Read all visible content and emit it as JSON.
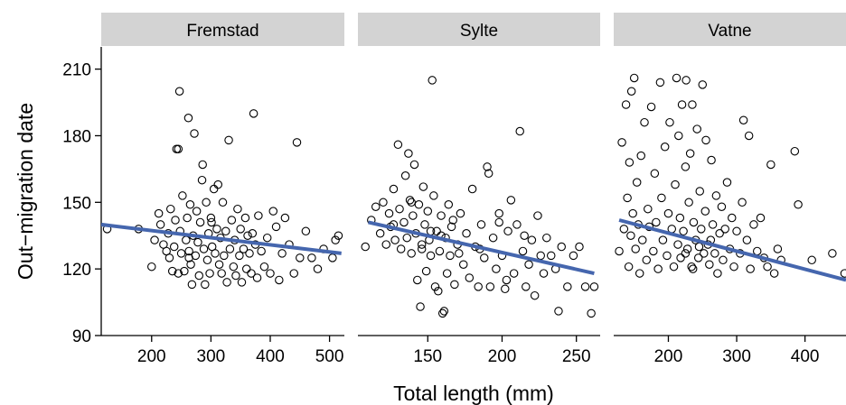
{
  "chart_data": {
    "type": "scatter",
    "facet_layout": "3 panels in one row, shared y axis",
    "xlabel": "Total length (mm)",
    "ylabel": "Out−migration date",
    "ylim": [
      90,
      220
    ],
    "yticks": [
      90,
      120,
      150,
      180,
      210
    ],
    "grid": false,
    "point_style": "open circle",
    "colors": {
      "points": "#000000",
      "trend_line": "#4566AE",
      "strip_background": "#D3D3D3"
    },
    "panels": [
      {
        "name": "Fremstad",
        "xlim": [
          115,
          525
        ],
        "xticks": [
          200,
          300,
          400,
          500
        ],
        "trend": {
          "x": [
            115,
            520
          ],
          "y": [
            140,
            127
          ]
        },
        "points": [
          [
            125,
            138
          ],
          [
            178,
            138
          ],
          [
            200,
            121
          ],
          [
            205,
            133
          ],
          [
            212,
            145
          ],
          [
            215,
            140
          ],
          [
            220,
            131
          ],
          [
            225,
            128
          ],
          [
            228,
            136
          ],
          [
            230,
            125
          ],
          [
            232,
            147
          ],
          [
            235,
            119
          ],
          [
            238,
            130
          ],
          [
            240,
            142
          ],
          [
            242,
            174
          ],
          [
            245,
            118
          ],
          [
            245,
            174
          ],
          [
            247,
            200
          ],
          [
            248,
            137
          ],
          [
            250,
            127
          ],
          [
            252,
            153
          ],
          [
            255,
            119
          ],
          [
            258,
            133
          ],
          [
            260,
            143
          ],
          [
            262,
            188
          ],
          [
            263,
            128
          ],
          [
            265,
            149
          ],
          [
            266,
            122
          ],
          [
            268,
            113
          ],
          [
            270,
            135
          ],
          [
            272,
            181
          ],
          [
            274,
            126
          ],
          [
            276,
            146
          ],
          [
            278,
            132
          ],
          [
            280,
            117
          ],
          [
            282,
            141
          ],
          [
            285,
            160
          ],
          [
            286,
            167
          ],
          [
            288,
            129
          ],
          [
            290,
            113
          ],
          [
            292,
            150
          ],
          [
            294,
            124
          ],
          [
            296,
            136
          ],
          [
            298,
            118
          ],
          [
            300,
            143
          ],
          [
            302,
            130
          ],
          [
            305,
            156
          ],
          [
            307,
            127
          ],
          [
            310,
            138
          ],
          [
            312,
            158
          ],
          [
            314,
            122
          ],
          [
            316,
            134
          ],
          [
            318,
            118
          ],
          [
            320,
            150
          ],
          [
            322,
            126
          ],
          [
            325,
            137
          ],
          [
            327,
            114
          ],
          [
            330,
            178
          ],
          [
            332,
            129
          ],
          [
            335,
            142
          ],
          [
            338,
            121
          ],
          [
            340,
            133
          ],
          [
            342,
            117
          ],
          [
            345,
            147
          ],
          [
            348,
            126
          ],
          [
            350,
            138
          ],
          [
            352,
            114
          ],
          [
            355,
            129
          ],
          [
            358,
            143
          ],
          [
            360,
            120
          ],
          [
            362,
            135
          ],
          [
            365,
            127
          ],
          [
            368,
            118
          ],
          [
            370,
            136
          ],
          [
            372,
            190
          ],
          [
            375,
            131
          ],
          [
            378,
            116
          ],
          [
            380,
            144
          ],
          [
            385,
            128
          ],
          [
            390,
            121
          ],
          [
            395,
            134
          ],
          [
            400,
            118
          ],
          [
            405,
            146
          ],
          [
            410,
            139
          ],
          [
            415,
            115
          ],
          [
            420,
            127
          ],
          [
            425,
            143
          ],
          [
            432,
            131
          ],
          [
            440,
            118
          ],
          [
            445,
            177
          ],
          [
            450,
            125
          ],
          [
            460,
            137
          ],
          [
            470,
            125
          ],
          [
            480,
            120
          ],
          [
            490,
            129
          ],
          [
            505,
            125
          ],
          [
            510,
            133
          ],
          [
            515,
            135
          ],
          [
            263,
            125
          ],
          [
            301,
            141
          ]
        ]
      },
      {
        "name": "Sylte",
        "xlim": [
          103,
          266
        ],
        "xticks": [
          150,
          200,
          250
        ],
        "trend": {
          "x": [
            110,
            262
          ],
          "y": [
            141,
            118
          ]
        },
        "points": [
          [
            108,
            130
          ],
          [
            112,
            142
          ],
          [
            115,
            148
          ],
          [
            118,
            136
          ],
          [
            120,
            150
          ],
          [
            122,
            131
          ],
          [
            124,
            145
          ],
          [
            125,
            139
          ],
          [
            127,
            156
          ],
          [
            128,
            133
          ],
          [
            130,
            176
          ],
          [
            131,
            147
          ],
          [
            132,
            129
          ],
          [
            134,
            141
          ],
          [
            135,
            162
          ],
          [
            136,
            134
          ],
          [
            137,
            172
          ],
          [
            138,
            151
          ],
          [
            139,
            127
          ],
          [
            140,
            144
          ],
          [
            141,
            167
          ],
          [
            142,
            136
          ],
          [
            143,
            115
          ],
          [
            144,
            149
          ],
          [
            145,
            103
          ],
          [
            146,
            131
          ],
          [
            147,
            157
          ],
          [
            148,
            140
          ],
          [
            149,
            119
          ],
          [
            150,
            146
          ],
          [
            151,
            133
          ],
          [
            152,
            126
          ],
          [
            153,
            205
          ],
          [
            154,
            153
          ],
          [
            155,
            112
          ],
          [
            156,
            137
          ],
          [
            157,
            110
          ],
          [
            158,
            128
          ],
          [
            159,
            144
          ],
          [
            160,
            100
          ],
          [
            161,
            101
          ],
          [
            162,
            134
          ],
          [
            163,
            118
          ],
          [
            164,
            149
          ],
          [
            165,
            126
          ],
          [
            166,
            139
          ],
          [
            168,
            113
          ],
          [
            170,
            131
          ],
          [
            172,
            145
          ],
          [
            174,
            122
          ],
          [
            176,
            136
          ],
          [
            178,
            116
          ],
          [
            180,
            156
          ],
          [
            182,
            130
          ],
          [
            184,
            112
          ],
          [
            186,
            140
          ],
          [
            188,
            125
          ],
          [
            190,
            166
          ],
          [
            191,
            163
          ],
          [
            192,
            112
          ],
          [
            194,
            134
          ],
          [
            196,
            120
          ],
          [
            198,
            145
          ],
          [
            200,
            126
          ],
          [
            202,
            111
          ],
          [
            204,
            137
          ],
          [
            206,
            151
          ],
          [
            208,
            118
          ],
          [
            210,
            140
          ],
          [
            212,
            182
          ],
          [
            214,
            128
          ],
          [
            216,
            112
          ],
          [
            218,
            122
          ],
          [
            220,
            133
          ],
          [
            222,
            108
          ],
          [
            224,
            144
          ],
          [
            226,
            126
          ],
          [
            228,
            118
          ],
          [
            230,
            134
          ],
          [
            233,
            126
          ],
          [
            236,
            120
          ],
          [
            238,
            101
          ],
          [
            240,
            130
          ],
          [
            244,
            112
          ],
          [
            248,
            126
          ],
          [
            252,
            130
          ],
          [
            256,
            112
          ],
          [
            260,
            100
          ],
          [
            262,
            112
          ],
          [
            198,
            141
          ],
          [
            152,
            137
          ],
          [
            167,
            142
          ],
          [
            185,
            129
          ],
          [
            203,
            115
          ],
          [
            127,
            140
          ],
          [
            139,
            150
          ],
          [
            146,
            129
          ],
          [
            159,
            135
          ],
          [
            171,
            127
          ],
          [
            215,
            135
          ]
        ]
      },
      {
        "name": "Vatne",
        "xlim": [
          120,
          460
        ],
        "xticks": [
          200,
          300,
          400
        ],
        "trend": {
          "x": [
            128,
            460
          ],
          "y": [
            142,
            115
          ]
        },
        "points": [
          [
            128,
            128
          ],
          [
            132,
            177
          ],
          [
            135,
            138
          ],
          [
            138,
            194
          ],
          [
            140,
            152
          ],
          [
            142,
            121
          ],
          [
            143,
            168
          ],
          [
            145,
            135
          ],
          [
            146,
            200
          ],
          [
            148,
            145
          ],
          [
            150,
            206
          ],
          [
            152,
            129
          ],
          [
            154,
            159
          ],
          [
            156,
            140
          ],
          [
            158,
            118
          ],
          [
            160,
            171
          ],
          [
            162,
            133
          ],
          [
            165,
            186
          ],
          [
            168,
            124
          ],
          [
            170,
            147
          ],
          [
            172,
            139
          ],
          [
            175,
            193
          ],
          [
            178,
            128
          ],
          [
            180,
            163
          ],
          [
            182,
            141
          ],
          [
            185,
            120
          ],
          [
            188,
            204
          ],
          [
            190,
            152
          ],
          [
            192,
            133
          ],
          [
            195,
            175
          ],
          [
            198,
            126
          ],
          [
            200,
            145
          ],
          [
            202,
            186
          ],
          [
            205,
            138
          ],
          [
            208,
            121
          ],
          [
            210,
            158
          ],
          [
            212,
            206
          ],
          [
            214,
            131
          ],
          [
            215,
            180
          ],
          [
            217,
            143
          ],
          [
            218,
            125
          ],
          [
            220,
            194
          ],
          [
            222,
            137
          ],
          [
            225,
            166
          ],
          [
            226,
            205
          ],
          [
            228,
            129
          ],
          [
            230,
            150
          ],
          [
            232,
            172
          ],
          [
            234,
            121
          ],
          [
            235,
            194
          ],
          [
            237,
            141
          ],
          [
            240,
            133
          ],
          [
            242,
            183
          ],
          [
            244,
            125
          ],
          [
            246,
            155
          ],
          [
            248,
            138
          ],
          [
            250,
            203
          ],
          [
            252,
            127
          ],
          [
            254,
            146
          ],
          [
            255,
            178
          ],
          [
            258,
            131
          ],
          [
            260,
            122
          ],
          [
            263,
            169
          ],
          [
            265,
            140
          ],
          [
            268,
            127
          ],
          [
            270,
            153
          ],
          [
            272,
            118
          ],
          [
            275,
            136
          ],
          [
            278,
            148
          ],
          [
            280,
            124
          ],
          [
            283,
            138
          ],
          [
            286,
            159
          ],
          [
            290,
            129
          ],
          [
            293,
            143
          ],
          [
            296,
            121
          ],
          [
            300,
            137
          ],
          [
            305,
            127
          ],
          [
            308,
            150
          ],
          [
            310,
            187
          ],
          [
            315,
            133
          ],
          [
            318,
            180
          ],
          [
            320,
            120
          ],
          [
            325,
            140
          ],
          [
            330,
            128
          ],
          [
            335,
            143
          ],
          [
            340,
            125
          ],
          [
            345,
            121
          ],
          [
            350,
            167
          ],
          [
            355,
            118
          ],
          [
            360,
            129
          ],
          [
            365,
            124
          ],
          [
            385,
            173
          ],
          [
            390,
            149
          ],
          [
            410,
            124
          ],
          [
            440,
            127
          ],
          [
            458,
            118
          ],
          [
            245,
            130
          ],
          [
            225,
            127
          ],
          [
            236,
            120
          ],
          [
            262,
            133
          ]
        ]
      }
    ]
  }
}
